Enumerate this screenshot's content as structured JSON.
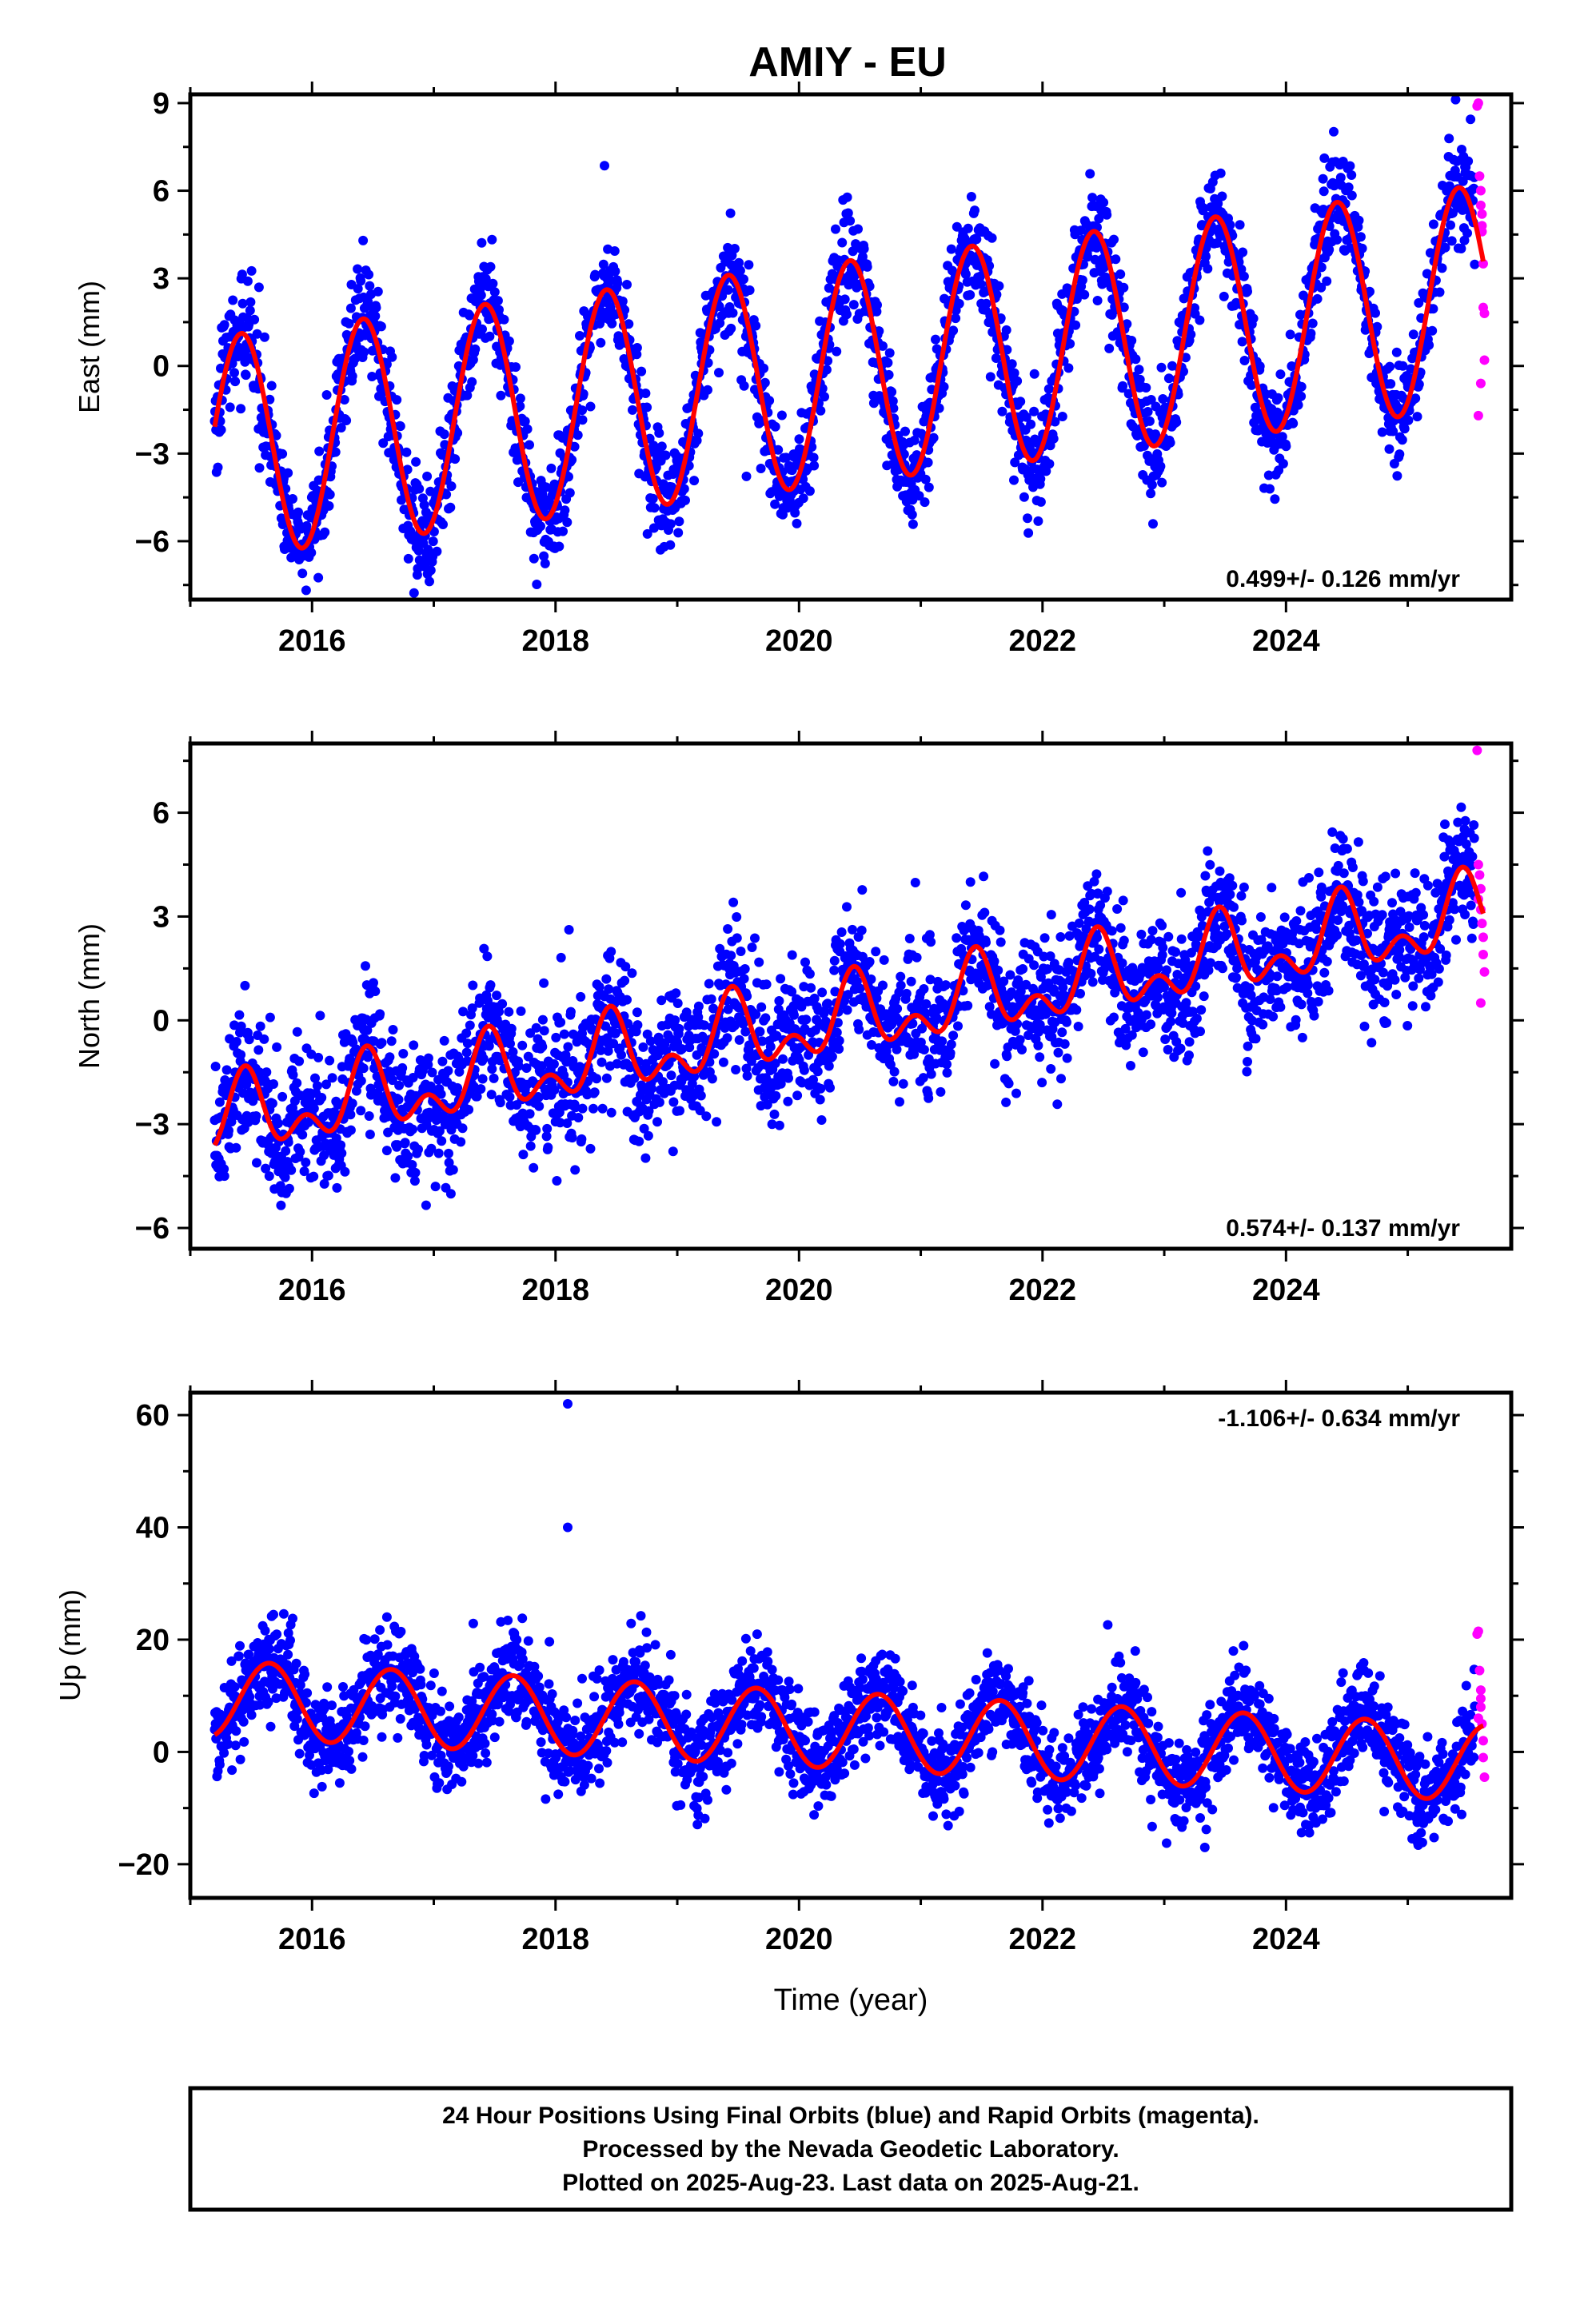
{
  "title": "AMIY - EU",
  "colors": {
    "final_orbits": "#0000ff",
    "rapid_orbits": "#ff00ff",
    "model_fit": "#ff0000",
    "frame": "#000000"
  },
  "chart_data": [
    {
      "type": "scatter",
      "panel": "east",
      "title": "AMIY - EU",
      "ylabel": "East (mm)",
      "xlabel": "",
      "xlim": [
        2015.0,
        2025.85
      ],
      "ylim": [
        -8.0,
        9.3
      ],
      "x_ticks": [
        2016,
        2018,
        2020,
        2022,
        2024
      ],
      "x_tick_labels": [
        "2016",
        "2018",
        "2020",
        "2022",
        "2024"
      ],
      "y_ticks": [
        -6,
        -3,
        0,
        3,
        6,
        9
      ],
      "y_tick_labels": [
        "−6",
        "−3",
        "0",
        "3",
        "6",
        "9"
      ],
      "annotation": "0.499+/- 0.126 mm/yr",
      "annotation_position": "bottom-right",
      "grid": false,
      "model": {
        "start": 2015.2,
        "end": 2025.62,
        "offset": -0.4,
        "trend": 0.499,
        "annual_amplitude": 3.8,
        "annual_phase": 2015.42,
        "semiannual_amplitude": 0.0,
        "semiannual_phase": 2015.0
      },
      "series": [
        {
          "name": "Final Orbits",
          "color": "#0000ff",
          "x_range": [
            2015.2,
            2025.55
          ],
          "count": 2700,
          "scatter_sd": 0.9
        },
        {
          "name": "Rapid Orbits",
          "color": "#ff00ff",
          "x": [
            2025.57,
            2025.58,
            2025.59,
            2025.6,
            2025.6,
            2025.61,
            2025.61,
            2025.62,
            2025.62,
            2025.63,
            2025.63,
            2025.6,
            2025.58,
            2025.61
          ],
          "y": [
            8.9,
            9.0,
            6.5,
            6.0,
            5.5,
            4.8,
            4.6,
            3.5,
            2.0,
            1.8,
            0.2,
            -0.6,
            -1.7,
            5.2
          ]
        }
      ]
    },
    {
      "type": "scatter",
      "panel": "north",
      "ylabel": "North (mm)",
      "xlabel": "",
      "xlim": [
        2015.0,
        2025.85
      ],
      "ylim": [
        -6.6,
        8.0
      ],
      "x_ticks": [
        2016,
        2018,
        2020,
        2022,
        2024
      ],
      "x_tick_labels": [
        "2016",
        "2018",
        "2020",
        "2022",
        "2024"
      ],
      "y_ticks": [
        -6,
        -3,
        0,
        3,
        6
      ],
      "y_tick_labels": [
        "−6",
        "−3",
        "0",
        "3",
        "6"
      ],
      "annotation": "0.574+/- 0.137 mm/yr",
      "annotation_position": "bottom-right",
      "grid": false,
      "model": {
        "start": 2015.2,
        "end": 2025.62,
        "offset": -0.2,
        "trend": 0.574,
        "annual_amplitude": 0.85,
        "annual_phase": 2015.45,
        "semiannual_amplitude": 0.65,
        "semiannual_phase": 2015.45
      },
      "series": [
        {
          "name": "Final Orbits",
          "color": "#0000ff",
          "x_range": [
            2015.2,
            2025.55
          ],
          "count": 2700,
          "scatter_sd": 0.95
        },
        {
          "name": "Rapid Orbits",
          "color": "#ff00ff",
          "x": [
            2025.57,
            2025.58,
            2025.59,
            2025.6,
            2025.6,
            2025.61,
            2025.62,
            2025.62,
            2025.63,
            2025.6,
            2025.58
          ],
          "y": [
            7.8,
            4.5,
            4.2,
            3.8,
            3.2,
            2.8,
            2.4,
            1.9,
            1.4,
            0.5,
            3.5
          ]
        }
      ]
    },
    {
      "type": "scatter",
      "panel": "up",
      "ylabel": "Up (mm)",
      "xlabel": "Time (year)",
      "xlim": [
        2015.0,
        2025.85
      ],
      "ylim": [
        -26.0,
        64.0
      ],
      "x_ticks": [
        2016,
        2018,
        2020,
        2022,
        2024
      ],
      "x_tick_labels": [
        "2016",
        "2018",
        "2020",
        "2022",
        "2024"
      ],
      "y_ticks": [
        -20,
        0,
        20,
        40,
        60
      ],
      "y_tick_labels": [
        "−20",
        "0",
        "20",
        "40",
        "60"
      ],
      "annotation": "-1.106+/- 0.634 mm/yr",
      "annotation_position": "top-right",
      "grid": false,
      "model": {
        "start": 2015.2,
        "end": 2025.62,
        "offset": 4.2,
        "trend": -1.106,
        "annual_amplitude": 6.8,
        "annual_phase": 2015.65,
        "semiannual_amplitude": 0.0,
        "semiannual_phase": 2015.0
      },
      "series": [
        {
          "name": "Final Orbits",
          "color": "#0000ff",
          "x_range": [
            2015.2,
            2025.55
          ],
          "count": 2700,
          "scatter_sd": 4.2,
          "outliers": {
            "x": [
              2018.1,
              2018.1
            ],
            "y": [
              62.0,
              40.0
            ]
          }
        },
        {
          "name": "Rapid Orbits",
          "color": "#ff00ff",
          "x": [
            2025.57,
            2025.58,
            2025.59,
            2025.6,
            2025.6,
            2025.61,
            2025.62,
            2025.62,
            2025.63,
            2025.6,
            2025.58
          ],
          "y": [
            21.0,
            21.5,
            14.5,
            11.0,
            8.0,
            5.0,
            2.0,
            -1.0,
            -4.5,
            9.5,
            6.0
          ]
        }
      ]
    }
  ],
  "footer": {
    "line1": "24 Hour Positions Using Final Orbits (blue) and Rapid Orbits (magenta).",
    "line2": "Processed by the Nevada Geodetic Laboratory.",
    "line3": "Plotted on 2025-Aug-23. Last data on 2025-Aug-21."
  }
}
